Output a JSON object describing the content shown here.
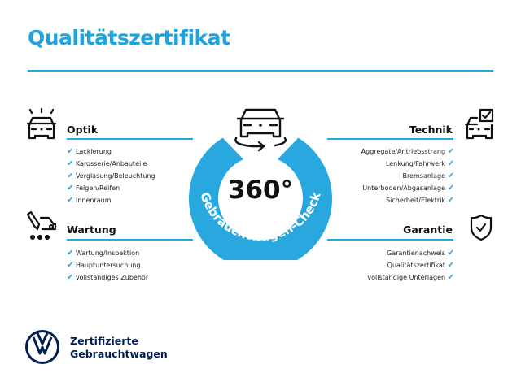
{
  "title": "Qualitätszertifikat",
  "accent_color": "#29a8df",
  "center": {
    "degrees": "360°",
    "ring_text": "Gebrauchtwagen-Check",
    "icon": "car-rotate-icon"
  },
  "sections": {
    "optik": {
      "heading": "Optik",
      "icon": "car-lights-icon",
      "items": [
        "Lackierung",
        "Karosserie/Anbauteile",
        "Verglasung/Beleuchtung",
        "Felgen/Reifen",
        "Innenraum"
      ]
    },
    "wartung": {
      "heading": "Wartung",
      "icon": "service-tool-icon",
      "items": [
        "Wartung/Inspektion",
        "Hauptuntersuchung",
        "vollständiges Zubehör"
      ]
    },
    "technik": {
      "heading": "Technik",
      "icon": "car-check-icon",
      "items": [
        "Aggregate/Antriebsstrang",
        "Lenkung/Fahrwerk",
        "Bremsanlage",
        "Unterboden/Abgasanlage",
        "Sicherheit/Elektrik"
      ]
    },
    "garantie": {
      "heading": "Garantie",
      "icon": "shield-check-icon",
      "items": [
        "Garantienachweis",
        "Qualitätszertifikat",
        "vollständige Unterlagen"
      ]
    }
  },
  "check_glyph": "✔",
  "footer": {
    "line1": "Zertifizierte",
    "line2": "Gebrauchtwagen",
    "logo": "VW"
  }
}
